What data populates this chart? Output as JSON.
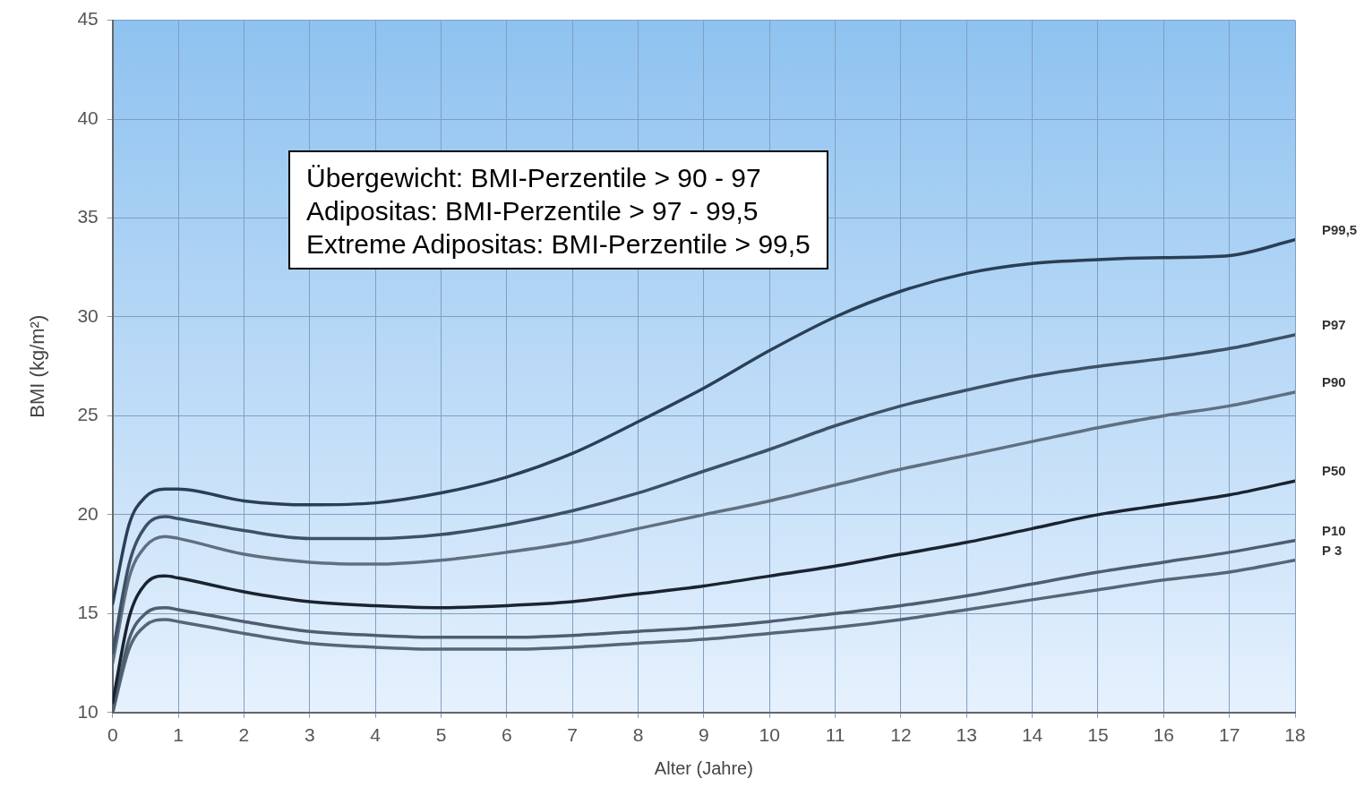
{
  "chart_data": {
    "type": "line",
    "xlabel": "Alter (Jahre)",
    "ylabel": "BMI (kg/m²)",
    "x": [
      0,
      0.25,
      0.5,
      0.8,
      1,
      2,
      3,
      4,
      5,
      6,
      7,
      8,
      9,
      10,
      11,
      12,
      13,
      14,
      15,
      16,
      17,
      18
    ],
    "series": [
      {
        "name": "P99,5",
        "color": "#2a3f55",
        "values": [
          15.5,
          19.5,
          20.9,
          21.3,
          21.3,
          20.7,
          20.5,
          20.6,
          21.1,
          21.9,
          23.1,
          24.7,
          26.4,
          28.3,
          30.0,
          31.3,
          32.2,
          32.7,
          32.9,
          33.0,
          33.1,
          33.9
        ]
      },
      {
        "name": "P97",
        "color": "#3d5166",
        "values": [
          13,
          17.5,
          19.4,
          19.9,
          19.8,
          19.2,
          18.8,
          18.8,
          19.0,
          19.5,
          20.2,
          21.1,
          22.2,
          23.3,
          24.5,
          25.5,
          26.3,
          27.0,
          27.5,
          27.9,
          28.4,
          29.1
        ]
      },
      {
        "name": "P90",
        "color": "#607080",
        "values": [
          12.5,
          16.8,
          18.4,
          18.9,
          18.8,
          18.0,
          17.6,
          17.5,
          17.7,
          18.1,
          18.6,
          19.3,
          20.0,
          20.7,
          21.5,
          22.3,
          23.0,
          23.7,
          24.4,
          25.0,
          25.5,
          26.2
        ]
      },
      {
        "name": "P50",
        "color": "#1a2330",
        "values": [
          10.5,
          14.8,
          16.5,
          16.9,
          16.8,
          16.1,
          15.6,
          15.4,
          15.3,
          15.4,
          15.6,
          16.0,
          16.4,
          16.9,
          17.4,
          18.0,
          18.6,
          19.3,
          20.0,
          20.5,
          21.0,
          21.7
        ]
      },
      {
        "name": "P10",
        "color": "#4e5e6e",
        "values": [
          10,
          13.7,
          15.0,
          15.3,
          15.2,
          14.6,
          14.1,
          13.9,
          13.8,
          13.8,
          13.9,
          14.1,
          14.3,
          14.6,
          15.0,
          15.4,
          15.9,
          16.5,
          17.1,
          17.6,
          18.1,
          18.7
        ]
      },
      {
        "name": "P 3",
        "color": "#556676",
        "values": [
          10,
          13.2,
          14.4,
          14.7,
          14.6,
          14.0,
          13.5,
          13.3,
          13.2,
          13.2,
          13.3,
          13.5,
          13.7,
          14.0,
          14.3,
          14.7,
          15.2,
          15.7,
          16.2,
          16.7,
          17.1,
          17.7
        ]
      }
    ],
    "xlim": [
      0,
      18
    ],
    "xticks": [
      0,
      1,
      2,
      3,
      4,
      5,
      6,
      7,
      8,
      9,
      10,
      11,
      12,
      13,
      14,
      15,
      16,
      17,
      18
    ],
    "ylim": [
      10,
      45
    ],
    "yticks": [
      10,
      15,
      20,
      25,
      30,
      35,
      40,
      45
    ],
    "annotations": [
      "Übergewicht: BMI-Perzentile > 90 - 97",
      "Adipositas: BMI-Perzentile > 97 - 99,5",
      "Extreme Adipositas: BMI-Perzentile > 99,5"
    ],
    "grid": true,
    "legend": false,
    "marker": "none",
    "line_style": "solid"
  }
}
